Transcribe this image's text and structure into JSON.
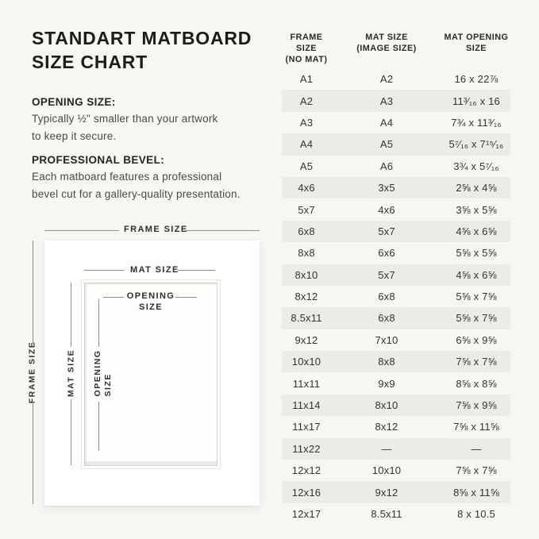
{
  "colors": {
    "background": "#f7f6f3",
    "row_stripe": "#edebe7",
    "text_dark": "#22211f",
    "line_gray": "#8f8e8b"
  },
  "left": {
    "title": "STANDART MATBOARD\nSIZE CHART",
    "sections": [
      {
        "heading": "OPENING SIZE:",
        "body": "Typically ½\" smaller than your artwork\nto keep it secure."
      },
      {
        "heading": "PROFESSIONAL BEVEL:",
        "body": "Each matboard features a professional\nbevel cut for a gallery-quality presentation."
      }
    ]
  },
  "diagram": {
    "frame_label": "FRAME SIZE",
    "mat_label": "MAT SIZE",
    "opening_label": "OPENING\nSIZE",
    "vertical_frame_label": "FRAME SIZE",
    "vertical_mat_label": "MAT SIZE",
    "vertical_opening_label": "OPENING\nSIZE"
  },
  "table": {
    "headers": [
      "FRAME SIZE\n(NO MAT)",
      "MAT SIZE\n(IMAGE SIZE)",
      "MAT OPENING\nSIZE"
    ],
    "rows": [
      [
        "A1",
        "A2",
        "16 x 22⅞"
      ],
      [
        "A2",
        "A3",
        "11³⁄₁₆ x 16"
      ],
      [
        "A3",
        "A4",
        "7¾ x 11³⁄₁₆"
      ],
      [
        "A4",
        "A5",
        "5⁷⁄₁₆ x 7¹⁵⁄₁₆"
      ],
      [
        "A5",
        "A6",
        "3¾ x 5⁷⁄₁₆"
      ],
      [
        "4x6",
        "3x5",
        "2⅝ x 4⅝"
      ],
      [
        "5x7",
        "4x6",
        "3⅝ x 5⅝"
      ],
      [
        "6x8",
        "5x7",
        "4⅝ x 6⅝"
      ],
      [
        "8x8",
        "6x6",
        "5⅝ x 5⅝"
      ],
      [
        "8x10",
        "5x7",
        "4⅝ x 6⅝"
      ],
      [
        "8x12",
        "6x8",
        "5⅝ x 7⅝"
      ],
      [
        "8.5x11",
        "6x8",
        "5⅝ x 7⅝"
      ],
      [
        "9x12",
        "7x10",
        "6⅝ x 9⅝"
      ],
      [
        "10x10",
        "8x8",
        "7⅝ x 7⅝"
      ],
      [
        "11x11",
        "9x9",
        "8⅝ x 8⅝"
      ],
      [
        "11x14",
        "8x10",
        "7⅝ x 9⅝"
      ],
      [
        "11x17",
        "8x12",
        "7⅝ x 11⅝"
      ],
      [
        "11x22",
        "—",
        "—"
      ],
      [
        "12x12",
        "10x10",
        "7⅝ x 7⅝"
      ],
      [
        "12x16",
        "9x12",
        "8⅝ x 11⅝"
      ],
      [
        "12x17",
        "8.5x11",
        "8 x 10.5"
      ]
    ]
  }
}
